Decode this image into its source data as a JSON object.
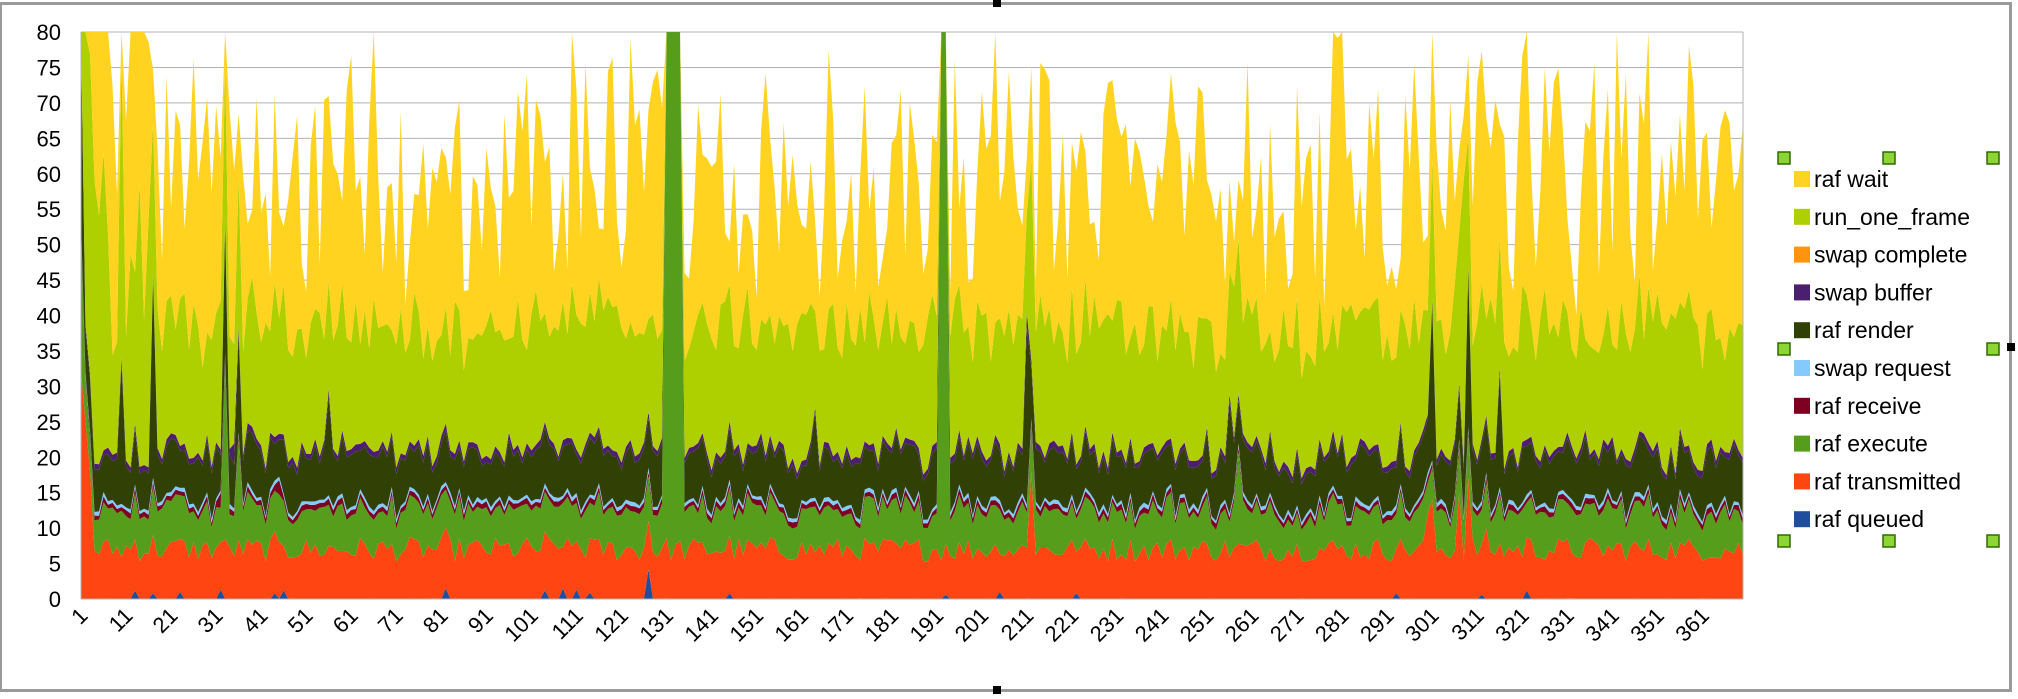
{
  "chart_data": {
    "type": "area",
    "stacked": true,
    "title": "",
    "xlabel": "",
    "ylabel": "",
    "ylim": [
      0,
      80
    ],
    "yticks": [
      0,
      5,
      10,
      15,
      20,
      25,
      30,
      35,
      40,
      45,
      50,
      55,
      60,
      65,
      70,
      75,
      80
    ],
    "x_range": [
      1,
      370
    ],
    "x_tick_labels": [
      "1",
      "11",
      "21",
      "31",
      "41",
      "51",
      "61",
      "71",
      "81",
      "91",
      "101",
      "111",
      "121",
      "131",
      "141",
      "151",
      "161",
      "171",
      "181",
      "191",
      "201",
      "211",
      "221",
      "231",
      "241",
      "251",
      "261",
      "271",
      "281",
      "291",
      "301",
      "311",
      "321",
      "331",
      "341",
      "351",
      "361"
    ],
    "grid": "horizontal",
    "legend_position": "right",
    "legend_order": [
      "raf wait",
      "run_one_frame",
      "swap complete",
      "swap buffer",
      "raf render",
      "swap request",
      "raf receive",
      "raf execute",
      "raf transmitted",
      "raf queued"
    ],
    "series": [
      {
        "name": "raf queued",
        "color": "#1f4e9c",
        "typical": 0.1,
        "spikes": [
          [
            13,
            1.2
          ],
          [
            17,
            0.8
          ],
          [
            23,
            1.0
          ],
          [
            32,
            1.3
          ],
          [
            44,
            0.8
          ],
          [
            46,
            1.2
          ],
          [
            82,
            1.5
          ],
          [
            104,
            1.2
          ],
          [
            108,
            1.5
          ],
          [
            111,
            1.3
          ],
          [
            114,
            0.9
          ],
          [
            127,
            4.2
          ],
          [
            145,
            0.8
          ],
          [
            193,
            0.6
          ],
          [
            205,
            1.0
          ],
          [
            222,
            0.8
          ],
          [
            293,
            0.8
          ],
          [
            312,
            0.6
          ],
          [
            322,
            1.2
          ]
        ]
      },
      {
        "name": "raf transmitted",
        "color": "#ff4512",
        "typical": 7.0,
        "spikes": [
          [
            1,
            32
          ],
          [
            2,
            25
          ],
          [
            3,
            18
          ],
          [
            212,
            18
          ],
          [
            307,
            15
          ],
          [
            309,
            17
          ],
          [
            313,
            10
          ],
          [
            300,
            12
          ],
          [
            301,
            14
          ]
        ]
      },
      {
        "name": "raf execute",
        "color": "#579d1c",
        "typical": 5.5,
        "spikes": [
          [
            131,
            80
          ],
          [
            132,
            80
          ],
          [
            133,
            80
          ],
          [
            134,
            80
          ],
          [
            192,
            80
          ],
          [
            193,
            80
          ],
          [
            1,
            20
          ],
          [
            33,
            25
          ],
          [
            36,
            14
          ],
          [
            258,
            13
          ]
        ]
      },
      {
        "name": "raf receive",
        "color": "#7e0021",
        "typical": 0.7,
        "spikes": [
          [
            32,
            2
          ],
          [
            45,
            2
          ]
        ]
      },
      {
        "name": "swap request",
        "color": "#83caff",
        "typical": 0.5,
        "spikes": []
      },
      {
        "name": "raf render",
        "color": "#314004",
        "typical": 6.5,
        "spikes": [
          [
            1,
            40
          ],
          [
            10,
            20
          ],
          [
            17,
            28
          ],
          [
            33,
            18
          ],
          [
            36,
            14
          ],
          [
            56,
            14
          ],
          [
            164,
            12
          ],
          [
            211,
            25
          ],
          [
            256,
            16
          ],
          [
            301,
            22
          ],
          [
            309,
            22
          ],
          [
            316,
            16
          ]
        ]
      },
      {
        "name": "swap buffer",
        "color": "#4b1f6f",
        "typical": 0.8,
        "spikes": [
          [
            35,
            3
          ],
          [
            211,
            2
          ]
        ]
      },
      {
        "name": "swap complete",
        "color": "#ff950e",
        "typical": 0.05,
        "spikes": []
      },
      {
        "name": "run_one_frame",
        "color": "#aecf00",
        "typical": 17,
        "spikes": [
          [
            2,
            45
          ],
          [
            3,
            45
          ],
          [
            4,
            40
          ],
          [
            5,
            35
          ],
          [
            6,
            42
          ],
          [
            7,
            30
          ],
          [
            10,
            42
          ],
          [
            12,
            30
          ],
          [
            14,
            40
          ],
          [
            16,
            35
          ],
          [
            212,
            28
          ],
          [
            308,
            40
          ]
        ]
      },
      {
        "name": "raf wait",
        "color": "#ffd320",
        "typical": 20,
        "spikes": [
          [
            2,
            40
          ],
          [
            3,
            38
          ],
          [
            4,
            40
          ],
          [
            5,
            40
          ],
          [
            6,
            40
          ],
          [
            7,
            40
          ],
          [
            8,
            38
          ],
          [
            12,
            45
          ],
          [
            13,
            40
          ],
          [
            14,
            50
          ],
          [
            15,
            48
          ],
          [
            16,
            25
          ],
          [
            33,
            40
          ],
          [
            37,
            25
          ],
          [
            60,
            35
          ],
          [
            91,
            25
          ],
          [
            123,
            40
          ],
          [
            163,
            20
          ],
          [
            343,
            20
          ]
        ]
      }
    ]
  },
  "selection_handles": "visible"
}
